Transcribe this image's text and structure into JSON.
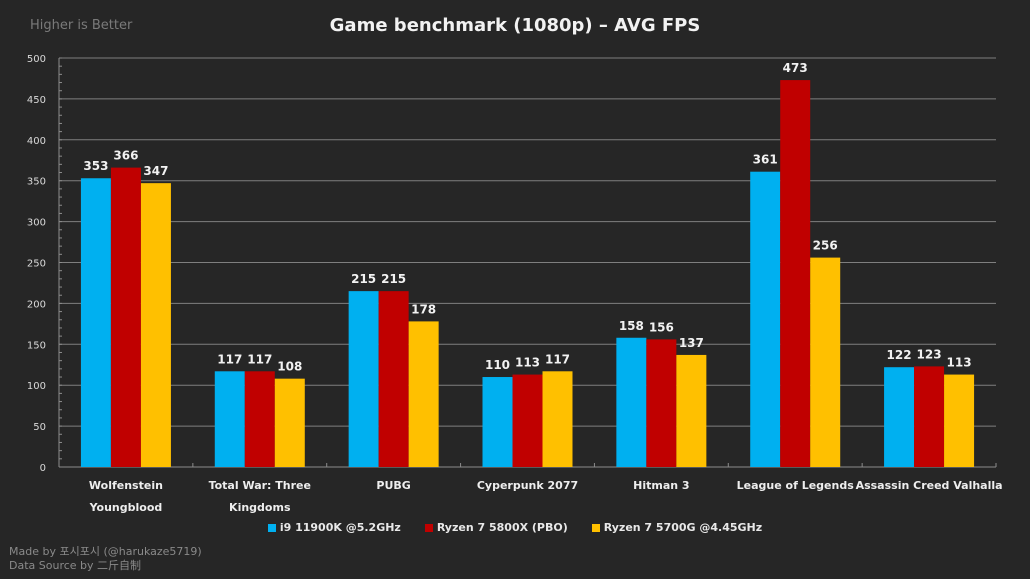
{
  "header": {
    "subtitle": "Higher is Better",
    "title": "Game benchmark (1080p) – AVG FPS"
  },
  "footer": {
    "made_by": "Made by 포시포시 (@harukaze5719)",
    "data_source": "Data Source by 二斤自制"
  },
  "chart_data": {
    "type": "bar",
    "title": "Game benchmark (1080p) – AVG FPS",
    "subtitle": "Higher is Better",
    "xlabel": "",
    "ylabel": "",
    "ylim": [
      0,
      500
    ],
    "y_ticks": [
      0,
      50,
      100,
      150,
      200,
      250,
      300,
      350,
      400,
      450,
      500
    ],
    "y_minor_step": 10,
    "grid": true,
    "legend_position": "bottom",
    "categories": [
      [
        "Wolfenstein",
        "Youngblood"
      ],
      [
        "Total War: Three",
        "Kingdoms"
      ],
      [
        "PUBG"
      ],
      [
        "Cyperpunk 2077"
      ],
      [
        "Hitman 3"
      ],
      [
        "League of Legends"
      ],
      [
        "Assassin Creed Valhalla"
      ]
    ],
    "series": [
      {
        "name": "i9 11900K @5.2GHz",
        "color": "#00b0f0",
        "values": [
          353,
          117,
          215,
          110,
          158,
          361,
          122
        ]
      },
      {
        "name": "Ryzen 7 5800X (PBO)",
        "color": "#c00000",
        "values": [
          366,
          117,
          215,
          113,
          156,
          473,
          123
        ]
      },
      {
        "name": "Ryzen 7 5700G @4.45GHz",
        "color": "#ffc000",
        "values": [
          347,
          108,
          178,
          117,
          137,
          256,
          113
        ]
      }
    ]
  }
}
